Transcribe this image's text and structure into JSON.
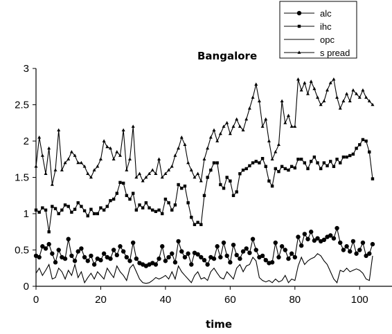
{
  "chart_data": {
    "type": "line",
    "title": "Bangalore",
    "xlabel": "time",
    "ylabel": "",
    "xlim": [
      0,
      110
    ],
    "ylim": [
      0,
      3
    ],
    "xticks": [
      0,
      20,
      40,
      60,
      80,
      100
    ],
    "yticks": [
      0,
      0.5,
      1,
      1.5,
      2,
      2.5,
      3
    ],
    "grid": false,
    "legend_position": "top-right",
    "series": [
      {
        "name": "alc",
        "marker": "circle",
        "color": "#000000",
        "values": [
          0.42,
          0.4,
          0.55,
          0.52,
          0.58,
          0.45,
          0.33,
          0.5,
          0.4,
          0.38,
          0.65,
          0.42,
          0.35,
          0.48,
          0.52,
          0.4,
          0.35,
          0.42,
          0.3,
          0.38,
          0.36,
          0.45,
          0.4,
          0.38,
          0.5,
          0.43,
          0.55,
          0.48,
          0.4,
          0.35,
          0.6,
          0.38,
          0.32,
          0.3,
          0.28,
          0.3,
          0.32,
          0.3,
          0.38,
          0.55,
          0.35,
          0.4,
          0.45,
          0.33,
          0.62,
          0.48,
          0.4,
          0.45,
          0.3,
          0.46,
          0.44,
          0.4,
          0.36,
          0.3,
          0.4,
          0.38,
          0.55,
          0.4,
          0.6,
          0.42,
          0.33,
          0.57,
          0.43,
          0.38,
          0.48,
          0.52,
          0.46,
          0.65,
          0.5,
          0.4,
          0.42,
          0.36,
          0.32,
          0.33,
          0.6,
          0.4,
          0.55,
          0.5,
          0.38,
          0.45,
          0.4,
          0.68,
          0.56,
          0.72,
          0.65,
          0.75,
          0.63,
          0.66,
          0.62,
          0.64,
          0.68,
          0.7,
          0.66,
          0.8,
          0.6,
          0.5,
          0.55,
          0.48,
          0.62,
          0.45,
          0.5,
          0.6,
          0.42,
          0.45,
          0.58
        ]
      },
      {
        "name": "ihc",
        "marker": "square",
        "color": "#000000",
        "values": [
          1.05,
          1.02,
          1.08,
          1.05,
          0.75,
          1.1,
          1.07,
          1.0,
          1.05,
          1.12,
          1.1,
          1.02,
          1.06,
          1.15,
          1.1,
          1.04,
          0.97,
          1.06,
          1.0,
          1.0,
          1.08,
          1.05,
          1.1,
          1.18,
          1.2,
          1.28,
          1.43,
          1.42,
          1.25,
          1.2,
          1.28,
          1.05,
          1.12,
          1.08,
          1.15,
          1.08,
          1.05,
          1.03,
          1.05,
          1.0,
          1.2,
          1.15,
          1.05,
          1.12,
          1.4,
          1.35,
          1.38,
          1.15,
          0.95,
          0.85,
          0.88,
          0.85,
          1.25,
          1.5,
          1.6,
          1.7,
          1.7,
          1.4,
          1.35,
          1.5,
          1.45,
          1.25,
          1.3,
          1.55,
          1.6,
          1.62,
          1.66,
          1.7,
          1.72,
          1.7,
          1.76,
          1.65,
          1.45,
          1.38,
          1.62,
          1.58,
          1.65,
          1.62,
          1.6,
          1.65,
          1.63,
          1.75,
          1.75,
          1.7,
          1.62,
          1.72,
          1.78,
          1.7,
          1.62,
          1.7,
          1.66,
          1.72,
          1.65,
          1.75,
          1.7,
          1.78,
          1.78,
          1.8,
          1.82,
          1.9,
          1.95,
          2.02,
          2.0,
          1.85,
          1.48
        ]
      },
      {
        "name": "opc",
        "marker": "none",
        "color": "#000000",
        "values": [
          0.18,
          0.25,
          0.15,
          0.22,
          0.3,
          0.1,
          0.12,
          0.25,
          0.2,
          0.1,
          0.22,
          0.15,
          0.3,
          0.12,
          0.2,
          0.05,
          0.12,
          0.18,
          0.1,
          0.2,
          0.15,
          0.1,
          0.25,
          0.18,
          0.12,
          0.28,
          0.2,
          0.15,
          0.08,
          0.25,
          0.3,
          0.2,
          0.1,
          0.05,
          0.04,
          0.05,
          0.08,
          0.12,
          0.1,
          0.12,
          0.15,
          0.1,
          0.2,
          0.1,
          0.28,
          0.2,
          0.15,
          0.1,
          0.05,
          0.15,
          0.2,
          0.1,
          0.12,
          0.08,
          0.2,
          0.25,
          0.18,
          0.12,
          0.1,
          0.2,
          0.15,
          0.1,
          0.25,
          0.3,
          0.2,
          0.28,
          0.3,
          0.4,
          0.35,
          0.12,
          0.08,
          0.06,
          0.08,
          0.05,
          0.1,
          0.06,
          0.08,
          0.15,
          0.05,
          0.1,
          0.08,
          0.28,
          0.4,
          0.3,
          0.35,
          0.38,
          0.4,
          0.45,
          0.42,
          0.35,
          0.3,
          0.2,
          0.1,
          0.05,
          0.22,
          0.2,
          0.25,
          0.2,
          0.22,
          0.24,
          0.22,
          0.18,
          0.1,
          0.08,
          0.42
        ]
      },
      {
        "name": "s pread",
        "marker": "triangle",
        "color": "#000000",
        "values": [
          1.65,
          2.05,
          1.8,
          1.55,
          1.9,
          1.4,
          1.6,
          2.15,
          1.6,
          1.7,
          1.75,
          1.85,
          1.8,
          1.7,
          1.7,
          1.65,
          1.55,
          1.5,
          1.6,
          1.65,
          1.75,
          2.0,
          1.92,
          1.9,
          1.75,
          1.85,
          1.8,
          2.15,
          1.6,
          1.75,
          2.2,
          1.5,
          1.55,
          1.45,
          1.5,
          1.55,
          1.6,
          1.55,
          1.75,
          1.5,
          1.55,
          1.6,
          1.65,
          1.8,
          1.9,
          2.05,
          1.95,
          1.7,
          1.6,
          1.5,
          1.55,
          1.45,
          1.75,
          1.9,
          2.05,
          2.15,
          2.0,
          2.1,
          2.2,
          2.25,
          2.1,
          2.2,
          2.3,
          2.2,
          2.15,
          2.3,
          2.45,
          2.6,
          2.78,
          2.55,
          2.2,
          2.3,
          2.0,
          1.75,
          1.85,
          1.95,
          2.55,
          2.25,
          2.35,
          2.2,
          2.2,
          2.85,
          2.7,
          2.8,
          2.65,
          2.82,
          2.72,
          2.6,
          2.5,
          2.55,
          2.7,
          2.8,
          2.85,
          2.6,
          2.45,
          2.55,
          2.65,
          2.55,
          2.7,
          2.65,
          2.6,
          2.7,
          2.6,
          2.55,
          2.5
        ]
      }
    ],
    "x_start": 0,
    "x_step": 1
  }
}
